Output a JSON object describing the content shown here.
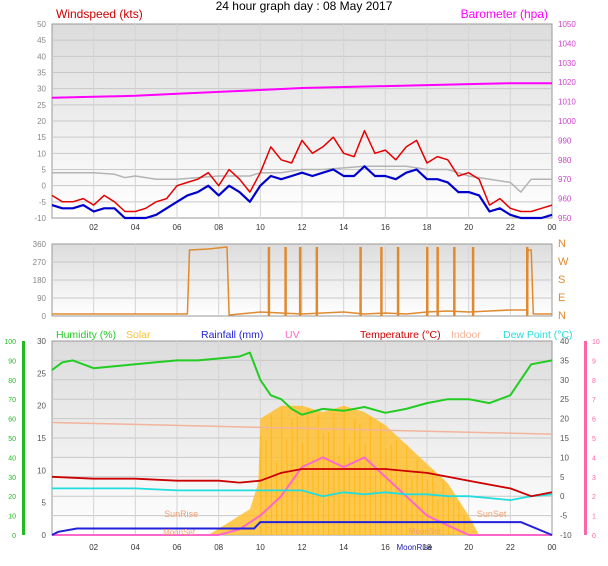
{
  "title": "24 hour graph day : 08 May 2017",
  "colors": {
    "wind": "#e60000",
    "gust": "#0000cc",
    "avg": "#b4b4b4",
    "baro": "#ff00ff",
    "dir": "#e08a30",
    "humidity": "#22cc22",
    "solar": "#ffc030",
    "rain": "#2222dd",
    "uv": "#ff66cc",
    "temp": "#cc0000",
    "indoor": "#f2b49a",
    "dew": "#22dddd",
    "axis_green": "#22bb22",
    "axis_pink": "#ff66aa"
  },
  "chart_data": [
    {
      "type": "line",
      "name": "wind-barometer",
      "left_axis": {
        "label": "Windspeed (kts)",
        "ticks": [
          "50",
          "45",
          "40",
          "35",
          "30",
          "25",
          "20",
          "15",
          "10",
          "5",
          "0",
          "-5",
          "-10"
        ],
        "ylim": [
          -10,
          50
        ]
      },
      "right_axis": {
        "label": "Barometer (hpa)",
        "ticks": [
          "1050",
          "1040",
          "1030",
          "1020",
          "1010",
          "1000",
          "990",
          "980",
          "970",
          "960",
          "950"
        ],
        "ylim": [
          950,
          1050
        ]
      },
      "x_ticks": [
        "02",
        "04",
        "06",
        "08",
        "10",
        "12",
        "14",
        "16",
        "18",
        "20",
        "22",
        "00"
      ],
      "series": [
        {
          "key": "baro",
          "axis": "right",
          "x": [
            0,
            2,
            4,
            6,
            8,
            10,
            12,
            14,
            16,
            18,
            20,
            22,
            24
          ],
          "y": [
            1012,
            1012.5,
            1013,
            1014,
            1015,
            1016,
            1017,
            1017.5,
            1018,
            1018.5,
            1019,
            1019.5,
            1019.5
          ]
        },
        {
          "key": "avg",
          "axis": "left",
          "x": [
            0,
            1,
            2,
            3,
            3.5,
            4,
            5,
            6,
            7,
            8,
            9,
            9.5,
            10,
            11,
            12,
            13,
            14,
            15,
            16,
            17,
            18,
            19,
            20,
            21,
            22,
            22.5,
            23,
            24
          ],
          "y": [
            4,
            4,
            4,
            3.5,
            2.5,
            3,
            2,
            2,
            2.5,
            3,
            3,
            3,
            4,
            4,
            5,
            5,
            5.5,
            6,
            6,
            6,
            5,
            5,
            3,
            2,
            1,
            -2,
            2,
            2
          ]
        },
        {
          "key": "wind",
          "axis": "left",
          "x": [
            0,
            0.5,
            1,
            1.5,
            2,
            2.5,
            3,
            3.5,
            4,
            4.5,
            5,
            5.5,
            6,
            6.5,
            7,
            7.5,
            8,
            8.5,
            9,
            9.5,
            10,
            10.5,
            11,
            11.5,
            12,
            12.5,
            13,
            13.5,
            14,
            14.5,
            15,
            15.5,
            16,
            16.5,
            17,
            17.5,
            18,
            18.5,
            19,
            19.5,
            20,
            20.5,
            21,
            21.5,
            22,
            22.5,
            23,
            23.5,
            24
          ],
          "y": [
            -3,
            -5,
            -5,
            -4,
            -6,
            -3,
            -5,
            -8,
            -8,
            -7,
            -5,
            -4,
            0,
            1,
            2,
            4,
            0,
            5,
            2,
            -2,
            4,
            12,
            8,
            7,
            14,
            10,
            12,
            15,
            10,
            9,
            17,
            10,
            11,
            8,
            12,
            14,
            7,
            9,
            8,
            3,
            4,
            2,
            -6,
            -4,
            -7,
            -8,
            -8,
            -7,
            -6
          ]
        },
        {
          "key": "gust",
          "axis": "left",
          "x": [
            0,
            0.5,
            1,
            1.5,
            2,
            2.5,
            3,
            3.5,
            4,
            4.5,
            5,
            5.5,
            6,
            6.5,
            7,
            7.5,
            8,
            8.5,
            9,
            9.5,
            10,
            10.5,
            11,
            11.5,
            12,
            12.5,
            13,
            13.5,
            14,
            14.5,
            15,
            15.5,
            16,
            16.5,
            17,
            17.5,
            18,
            18.5,
            19,
            19.5,
            20,
            20.5,
            21,
            21.5,
            22,
            22.5,
            23,
            23.5,
            24
          ],
          "y": [
            -6,
            -7,
            -7,
            -6,
            -8,
            -7,
            -7,
            -10,
            -10,
            -10,
            -9,
            -7,
            -5,
            -3,
            -2,
            0,
            -3,
            0,
            -2,
            -5,
            0,
            3,
            2,
            3,
            4,
            3,
            4,
            5,
            3,
            3,
            6,
            3,
            3,
            2,
            4,
            5,
            2,
            2,
            1,
            -2,
            -2,
            -3,
            -8,
            -7,
            -9,
            -10,
            -10,
            -10,
            -9
          ]
        }
      ]
    },
    {
      "type": "line",
      "name": "wind-direction",
      "left_axis": {
        "ticks": [
          "360",
          "270",
          "180",
          "90",
          "0"
        ],
        "ylim": [
          0,
          360
        ]
      },
      "right_axis": {
        "ticks": [
          "N",
          "W",
          "S",
          "E",
          "N"
        ]
      },
      "series": [
        {
          "key": "dir",
          "x": [
            0,
            6.5,
            6.6,
            7.5,
            8.4,
            8.5,
            10,
            11,
            12,
            13,
            14,
            15,
            16,
            17,
            18,
            19,
            20,
            21,
            22,
            22.8,
            22.85,
            23,
            23.1,
            23.2,
            24
          ],
          "y": [
            10,
            10,
            330,
            335,
            345,
            5,
            20,
            15,
            10,
            15,
            20,
            10,
            15,
            10,
            20,
            25,
            20,
            25,
            30,
            30,
            330,
            330,
            10,
            10,
            10
          ]
        }
      ],
      "spikes_x": [
        10.4,
        11.2,
        11.9,
        12.7,
        14.8,
        15.8,
        16.6,
        18,
        18.5,
        19.3,
        20.2,
        22.8
      ]
    },
    {
      "type": "line",
      "name": "weather",
      "left_axis": {
        "ticks": [
          "100",
          "90",
          "80",
          "70",
          "60",
          "50",
          "40",
          "30",
          "20",
          "10",
          "0"
        ],
        "ylim": [
          0,
          100
        ]
      },
      "left_axis2": {
        "ticks": [
          "30",
          "25",
          "20",
          "15",
          "10",
          "5",
          "0"
        ],
        "ylim": [
          0,
          30
        ]
      },
      "right_axis": {
        "ticks": [
          "40",
          "35",
          "30",
          "25",
          "20",
          "15",
          "10",
          "5",
          "0",
          "-5",
          "-10"
        ],
        "ylim": [
          -10,
          40
        ]
      },
      "right_axis2": {
        "ticks": [
          "10",
          "9",
          "8",
          "7",
          "6",
          "5",
          "4",
          "3",
          "2",
          "1",
          "0"
        ],
        "ylim": [
          0,
          10
        ]
      },
      "legend": [
        {
          "label": "Humidity (%)",
          "key": "humidity"
        },
        {
          "label": "Solar",
          "key": "solar"
        },
        {
          "label": "Rainfall (mm)",
          "key": "rain"
        },
        {
          "label": "UV",
          "key": "uv"
        },
        {
          "label": "Temperature (°C)",
          "key": "temp"
        },
        {
          "label": "Indoor",
          "key": "indoor"
        },
        {
          "label": "Dew Point (°C)",
          "key": "dew"
        }
      ],
      "annotations": [
        "SunRise",
        "SunSet",
        "MoonSet",
        "MoonRise"
      ],
      "x_ticks": [
        "02",
        "04",
        "06",
        "08",
        "10",
        "12",
        "14",
        "16",
        "18",
        "20",
        "22",
        "00"
      ],
      "series": [
        {
          "key": "humidity",
          "axis": "left",
          "x": [
            0,
            0.5,
            1,
            1.5,
            2,
            3,
            4,
            5,
            6,
            7,
            8,
            9,
            9.5,
            10,
            10.5,
            11,
            11.5,
            12,
            13,
            14,
            15,
            16,
            17,
            18,
            19,
            20,
            21,
            22,
            23,
            24
          ],
          "y": [
            85,
            89,
            90,
            88,
            86,
            87,
            88,
            89,
            90,
            90,
            91,
            92,
            94,
            80,
            72,
            70,
            65,
            62,
            65,
            64,
            66,
            63,
            65,
            68,
            70,
            70,
            68,
            72,
            88,
            90
          ]
        },
        {
          "key": "indoor",
          "axis": "right",
          "x": [
            0,
            4,
            8,
            12,
            16,
            20,
            24
          ],
          "y": [
            19,
            18.5,
            18,
            17.5,
            17,
            16.5,
            16
          ]
        },
        {
          "key": "temp",
          "axis": "right",
          "x": [
            0,
            2,
            4,
            6,
            8,
            9,
            10,
            10.5,
            11,
            12,
            13,
            14,
            15,
            16,
            17,
            18,
            19,
            20,
            21,
            22,
            23,
            24
          ],
          "y": [
            5,
            4.5,
            4.5,
            4,
            4,
            3.5,
            4,
            5,
            6,
            7,
            7,
            7,
            7,
            7,
            6.5,
            6,
            5,
            4,
            3,
            2,
            0,
            1
          ]
        },
        {
          "key": "dew",
          "axis": "right",
          "x": [
            0,
            2,
            4,
            6,
            8,
            10,
            11,
            12,
            13,
            14,
            15,
            16,
            17,
            18,
            19,
            20,
            21,
            22,
            23,
            24
          ],
          "y": [
            2,
            2,
            2,
            1.5,
            1.5,
            1.5,
            1.5,
            1.5,
            0,
            1,
            0.5,
            1,
            0.5,
            0.5,
            0,
            0,
            -0.5,
            -1,
            0,
            0.5
          ]
        },
        {
          "key": "rain",
          "axis": "left2",
          "x": [
            0,
            0.3,
            1.2,
            9.7,
            10,
            22.5,
            24
          ],
          "y": [
            0,
            0.5,
            1,
            1,
            2,
            2,
            0
          ]
        },
        {
          "key": "uv",
          "axis": "right2",
          "x": [
            0,
            8,
            9,
            10,
            11,
            12,
            13,
            14,
            15,
            16,
            17,
            18,
            19,
            20,
            24
          ],
          "y": [
            0,
            0,
            0.3,
            1,
            2,
            3.5,
            4,
            3.5,
            4,
            3,
            2,
            1,
            0.5,
            0,
            0
          ]
        },
        {
          "key": "solar",
          "axis": "left2",
          "x": [
            0,
            7.5,
            8.5,
            9.5,
            9.9,
            10,
            11,
            12,
            13,
            14,
            15,
            16,
            17,
            18,
            19,
            20,
            20.5,
            24
          ],
          "y": [
            0,
            0,
            2,
            4,
            8,
            18,
            20,
            20,
            19,
            20,
            19,
            17,
            14,
            11,
            8,
            3,
            0,
            0
          ]
        }
      ]
    }
  ]
}
